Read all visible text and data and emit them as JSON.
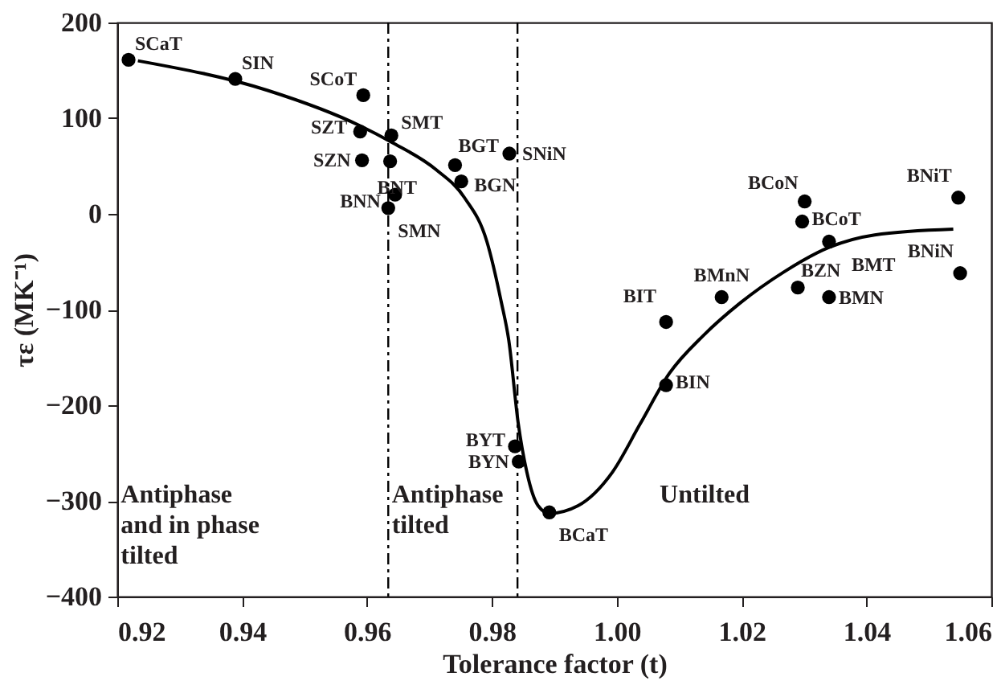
{
  "chart_data": {
    "type": "scatter",
    "xlabel": "Tolerance factor (t)",
    "ylabel": "τε (MK⁻¹)",
    "xlim": [
      0.92,
      1.06
    ],
    "xticks": [
      0.92,
      0.94,
      0.96,
      0.98,
      {
        "value": 1.0,
        "label": "1.00"
      },
      1.02,
      1.04,
      1.06
    ],
    "ylim": [
      -400,
      200
    ],
    "yticks": [
      -400,
      -300,
      -200,
      -100,
      0,
      100,
      200
    ],
    "grid": false,
    "series": [
      {
        "color": "#000000",
        "marker": "circle",
        "x": [
          0.9218,
          0.9389,
          0.9594,
          0.9589,
          0.9639,
          0.9592,
          0.9637,
          0.9645,
          0.9634,
          0.9741,
          0.9751,
          0.9828,
          1.0301,
          1.0547,
          1.0297,
          1.034,
          1.055,
          1.029,
          1.034,
          1.0168,
          1.0079,
          1.0079,
          0.9837,
          0.9843,
          0.9892
        ],
        "values": [
          161,
          141,
          124,
          86,
          82,
          56,
          55,
          20,
          6,
          51,
          34,
          63,
          13,
          17,
          -8,
          -29,
          -62,
          -77,
          -87,
          -87,
          -113,
          -179,
          -243,
          -259,
          -312
        ],
        "value_labels": [
          "SCaT",
          "SIN",
          "SCoT",
          "SZT",
          "SMT",
          "SZN",
          "BNT",
          "BNN",
          "SMN",
          "BGT",
          "BGN",
          "SNiN",
          "BCoN",
          "BNiT",
          "BCoT",
          "BMT",
          "BNiN",
          "BZN",
          "BMN",
          "BMnN",
          "BIT",
          "BIN",
          "BYT",
          "BYN",
          "BCaT"
        ]
      },
      {
        "type": "line",
        "color": "#000000",
        "marker": "none",
        "line_style": "solid",
        "x": [
          0.9233,
          0.9441,
          0.9589,
          0.9639,
          0.9711,
          0.9756,
          0.9792,
          0.9815,
          0.9827,
          0.9842,
          0.9856,
          0.9874,
          0.9892,
          0.9938,
          0.9993,
          1.0038,
          1.0084,
          1.0139,
          1.0198,
          1.0267,
          1.034,
          1.0413,
          1.0539
        ],
        "values": [
          160,
          129,
          92,
          75,
          46,
          17,
          -29,
          -92,
          -132,
          -218,
          -270,
          -305,
          -313,
          -305,
          -270,
          -219,
          -167,
          -127,
          -93,
          -61,
          -35,
          -22,
          -16
        ]
      }
    ],
    "ref_lines": [
      {
        "axis": "x",
        "value": 0.9634,
        "color": "#000000",
        "line_style": "dashed"
      },
      {
        "axis": "x",
        "value": 0.9841,
        "color": "#000000",
        "line_style": "dashed"
      }
    ],
    "annotations": [
      "Antiphase and in phase tilted",
      "Antiphase tilted",
      "Untilted"
    ]
  }
}
